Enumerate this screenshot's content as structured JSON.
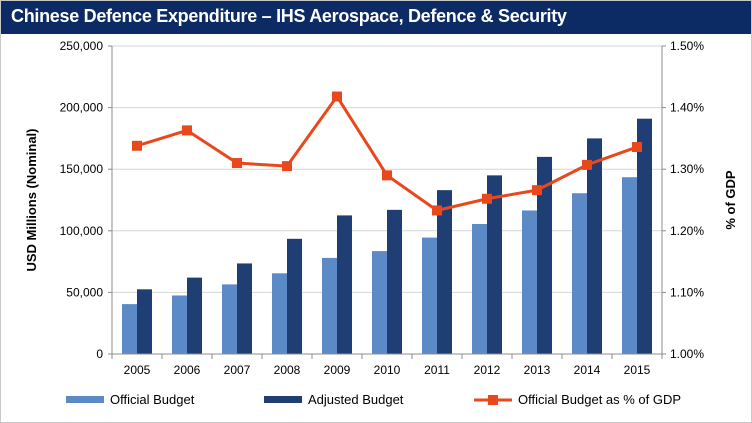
{
  "title": "Chinese Defence Expenditure – IHS Aerospace, Defence & Security",
  "colors": {
    "title_bar": "#0c2a63",
    "official_budget": "#5b8ac6",
    "adjusted_budget": "#1f3e74",
    "gdp_line": "#e8481c"
  },
  "chart_data": {
    "type": "bar",
    "title": "Chinese Defence Expenditure – IHS Aerospace, Defence & Security",
    "categories": [
      "2005",
      "2006",
      "2007",
      "2008",
      "2009",
      "2010",
      "2011",
      "2012",
      "2013",
      "2014",
      "2015"
    ],
    "ylabel": "USD Millions (Nominal)",
    "y2label": "% of GDP",
    "ylim": [
      0,
      250000
    ],
    "y2lim": [
      1.0,
      1.5
    ],
    "yticks": [
      "0",
      "50,000",
      "100,000",
      "150,000",
      "200,000",
      "250,000"
    ],
    "y2ticks": [
      "1.00%",
      "1.10%",
      "1.20%",
      "1.30%",
      "1.40%",
      "1.50%"
    ],
    "grid": true,
    "legend_position": "bottom",
    "series": [
      {
        "name": "Official Budget",
        "type": "bar",
        "axis": "left",
        "values": [
          40500,
          47500,
          56500,
          65500,
          78000,
          83500,
          94500,
          105500,
          116500,
          130500,
          143500
        ]
      },
      {
        "name": "Adjusted Budget",
        "type": "bar",
        "axis": "left",
        "values": [
          52500,
          62000,
          73500,
          93500,
          112500,
          117000,
          133000,
          145000,
          160000,
          175000,
          191000
        ]
      },
      {
        "name": "Official Budget as % of GDP",
        "type": "line",
        "axis": "right",
        "values": [
          1.338,
          1.363,
          1.31,
          1.305,
          1.418,
          1.29,
          1.233,
          1.252,
          1.266,
          1.307,
          1.336
        ]
      }
    ]
  }
}
